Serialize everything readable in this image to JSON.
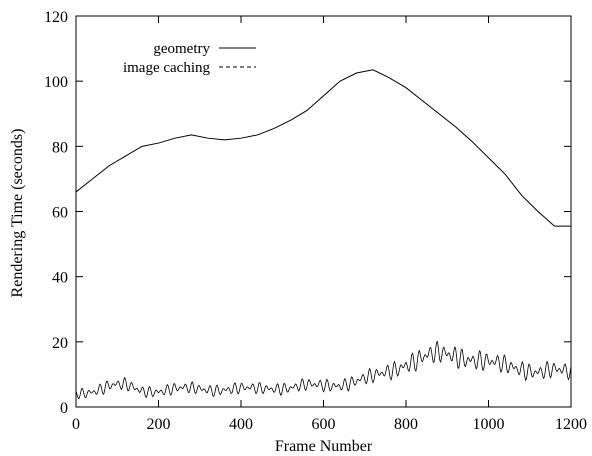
{
  "chart_data": {
    "type": "line",
    "title": "",
    "xlabel": "Frame Number",
    "ylabel": "Rendering Time (seconds)",
    "xlim": [
      0,
      1200
    ],
    "ylim": [
      0,
      120
    ],
    "xticks": [
      0,
      200,
      400,
      600,
      800,
      1000,
      1200
    ],
    "yticks": [
      0,
      20,
      40,
      60,
      80,
      100,
      120
    ],
    "grid": false,
    "legend_position": "top-left",
    "series": [
      {
        "name": "geometry",
        "style": "solid",
        "color": "#000000",
        "x": [
          0,
          40,
          80,
          120,
          160,
          200,
          240,
          280,
          320,
          360,
          400,
          440,
          480,
          520,
          560,
          600,
          640,
          680,
          720,
          760,
          800,
          840,
          880,
          920,
          960,
          1000,
          1040,
          1080,
          1120,
          1160,
          1200
        ],
        "y": [
          66,
          70,
          74,
          77,
          80,
          81,
          82.5,
          83.5,
          82.5,
          82,
          82.5,
          83.5,
          85.5,
          88,
          91,
          95.5,
          100,
          102.5,
          103.5,
          101,
          98,
          94,
          90,
          86,
          81.5,
          76.5,
          71.5,
          65,
          60,
          55.5,
          55.5
        ]
      },
      {
        "name": "image caching",
        "style": "dashed",
        "color": "#000000",
        "x": [
          0,
          40,
          80,
          120,
          160,
          200,
          240,
          280,
          320,
          360,
          400,
          440,
          480,
          520,
          560,
          600,
          640,
          680,
          720,
          760,
          800,
          840,
          880,
          920,
          960,
          1000,
          1040,
          1080,
          1120,
          1160,
          1200
        ],
        "y": [
          4,
          5,
          6.5,
          6.5,
          5,
          5,
          5.5,
          5.5,
          5.5,
          5.5,
          5.5,
          5.5,
          6,
          6,
          6.5,
          6.5,
          7,
          8,
          9,
          11,
          13.5,
          15,
          16,
          16,
          15,
          13.5,
          12.5,
          12,
          11,
          11,
          10.5
        ]
      }
    ]
  }
}
